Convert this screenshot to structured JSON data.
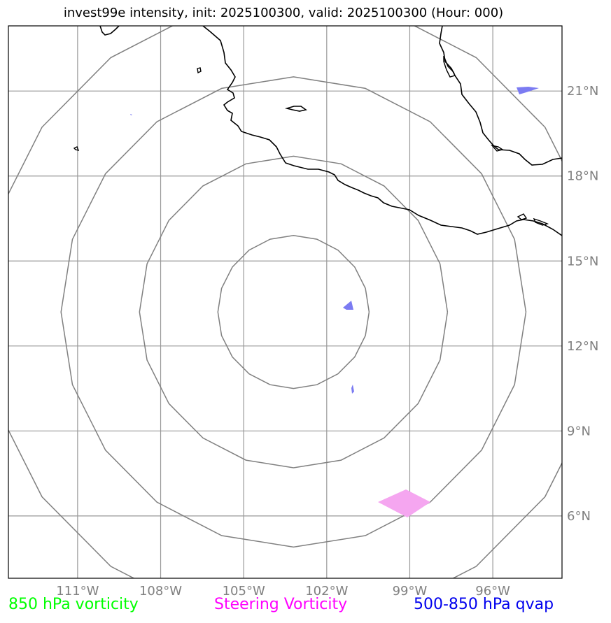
{
  "title": "invest99e intensity, init: 2025100300, valid: 2025100300 (Hour: 000)",
  "colors": {
    "grid": "#999999",
    "rings": "#808080",
    "coast": "#000000",
    "qvap": "#7b7bf2",
    "steering": "#f5a6f0",
    "vort850_label": "#00ff00",
    "steering_label": "#ff00ff",
    "qvap_label": "#0000ee"
  },
  "map": {
    "lon_ticks": [
      "111°W",
      "108°W",
      "105°W",
      "102°W",
      "99°W",
      "96°W"
    ],
    "lat_ticks": [
      "21°N",
      "18°N",
      "15°N",
      "12°N",
      "9°N",
      "6°N"
    ],
    "lon_values": [
      -111,
      -108,
      -105,
      -102,
      -99,
      -96
    ],
    "lat_values": [
      21,
      18,
      15,
      12,
      9,
      6
    ],
    "extent": {
      "lon_min": -113.5,
      "lon_max": -93.5,
      "lat_min": 3.8,
      "lat_max": 23.3
    },
    "center": {
      "lon": -103.2,
      "lat": 13.2
    },
    "ring_radii_deg": [
      2.7,
      5.5,
      8.3,
      11.1
    ]
  },
  "legend": {
    "vort850": "850 hPa vorticity",
    "steering": "Steering Vorticity",
    "qvap": "500-850 hPa qvap"
  }
}
